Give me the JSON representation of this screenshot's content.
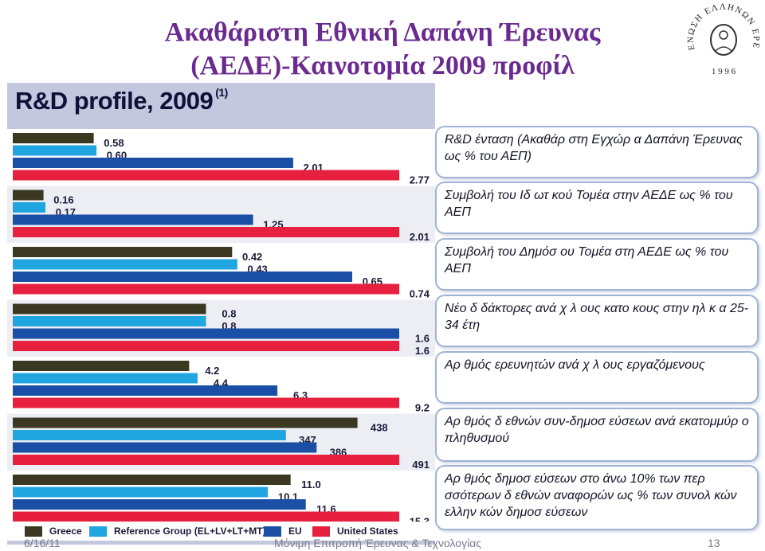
{
  "slide": {
    "title_line1": "Ακαθάριστη Εθνική Δαπάνη Έρευνας",
    "title_line2": "(ΑΕΔΕ)-Καινοτομία 2009 προφίλ",
    "logo_text": "ΕΝΩΣΗ ΕΛΛΗΝΩΝ ΕΡΕΥΝΗΤΩΝ",
    "logo_year": "1 9 9 6"
  },
  "chart_data": {
    "type": "bar",
    "orientation": "horizontal",
    "title": "R&D profile, 2009",
    "title_note": "(1)",
    "series": [
      {
        "name": "Greece",
        "color": "#3a3820"
      },
      {
        "name": "Reference Group (EL+LV+LT+MT)",
        "color": "#1fa5e0"
      },
      {
        "name": "EU",
        "color": "#1b4fa6"
      },
      {
        "name": "United States",
        "color": "#e8203f"
      }
    ],
    "groups": [
      {
        "indicator": "R&D ένταση (Ακαθάρ στη Εγχώρ α Δαπάνη Έρευνας ως % του ΑΕΠ)",
        "values": [
          0.58,
          0.6,
          2.01,
          2.77
        ],
        "labels": [
          "0.58",
          "0.60",
          "2.01",
          "2.77"
        ]
      },
      {
        "indicator": "Συμβολή του Ιδ ωτ κού Τομέα στην ΑΕΔΕ ως % του ΑΕΠ",
        "values": [
          0.16,
          0.17,
          1.25,
          2.01
        ],
        "labels": [
          "0.16",
          "0.17",
          "1.25",
          "2.01"
        ]
      },
      {
        "indicator": "Συμβολή του Δημόσ ου Τομέα στη ΑΕΔΕ ως % του ΑΕΠ",
        "values": [
          0.42,
          0.43,
          0.65,
          0.74
        ],
        "labels": [
          "0.42",
          "0.43",
          "0.65",
          "0.74"
        ]
      },
      {
        "indicator": "Νέο δ δάκτορες ανά χ λ ους κατο κους στην ηλ κ α 25-34 έτη",
        "values": [
          0.8,
          0.8,
          1.6,
          1.6
        ],
        "labels": [
          "0.8",
          "0.8",
          "1.6",
          "1.6"
        ]
      },
      {
        "indicator": "Αρ θμός ερευνητών ανά χ λ ους εργαζόμενους",
        "values": [
          4.2,
          4.4,
          6.3,
          9.2
        ],
        "labels": [
          "4.2",
          "4.4",
          "6.3",
          "9.2"
        ]
      },
      {
        "indicator": "Αρ θμός δ εθνών συν-δημοσ εύσεων ανά εκατομμύρ ο πληθυσμού",
        "values": [
          438,
          347,
          386,
          491
        ],
        "labels": [
          "438",
          "347",
          "386",
          "491"
        ]
      },
      {
        "indicator": "Αρ θμός δημοσ εύσεων στο άνω 10% των περ σσότερων δ εθνών αναφορών ως % των συνολ κών ελλην κών δημοσ εύσεων",
        "values": [
          11.0,
          10.1,
          11.6,
          15.3
        ],
        "labels": [
          "11.0",
          "10.1",
          "11.6",
          "15.3"
        ]
      }
    ]
  },
  "descriptions": [
    "R&D ένταση (Ακαθάρ στη Εγχώρ α Δαπάνη Έρευνας ως % του ΑΕΠ)",
    "Συμβολή του Ιδ ωτ κού Τομέα στην ΑΕΔΕ ως % του ΑΕΠ",
    "Συμβολή του Δημόσ ου Τομέα στη ΑΕΔΕ ως % του ΑΕΠ",
    "Νέο δ δάκτορες ανά χ λ ους κατο κους στην ηλ κ α 25-34 έτη",
    "Αρ θμός ερευνητών ανά χ λ ους εργαζόμενους",
    "Αρ θμός δ εθνών συν-δημοσ εύσεων ανά εκατομμύρ ο πληθυσμού",
    "Αρ θμός δημοσ εύσεων στο άνω 10% των περ σσότερων δ εθνών αναφορών ως % των συνολ κών ελλην κών δημοσ εύσεων"
  ],
  "footer": {
    "date": "6/16/11",
    "center": "Μόνιμη Επιτροπή Έρευνας & Τεχνολογίας",
    "page": "13"
  }
}
